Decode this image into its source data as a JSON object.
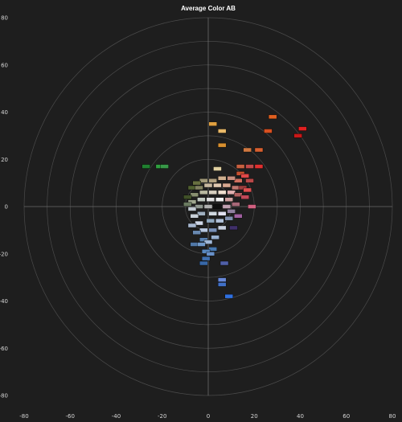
{
  "chart_data": {
    "type": "scatter",
    "title": "Average Color AB",
    "xlabel": "",
    "ylabel": "",
    "xlim": [
      -80,
      80
    ],
    "ylim": [
      -80,
      80
    ],
    "x_ticks": [
      -80,
      -60,
      -40,
      -20,
      0,
      20,
      40,
      60,
      80
    ],
    "y_ticks": [
      80,
      60,
      40,
      20,
      0,
      -20,
      -40,
      -60,
      -80
    ],
    "x_tick_labels": [
      "-80",
      "-60",
      "-40",
      "-20",
      "0",
      "20",
      "40",
      "60",
      "80"
    ],
    "y_tick_labels": [
      "80",
      "60",
      "40",
      "20",
      "0",
      "-20",
      "-40",
      "-60",
      "-80"
    ],
    "rings": [
      10,
      20,
      30,
      40,
      50,
      60,
      70,
      80
    ],
    "grid": "polar rings with crosshair axes",
    "colors": {
      "background": "#1e1e1e",
      "grid": "#4a4a4a",
      "axes": "#6a6a6a",
      "text": "#d6d6d6"
    },
    "points": [
      {
        "x": 2,
        "y": 35,
        "color": "#e0a040"
      },
      {
        "x": 6,
        "y": 32,
        "color": "#e8b868"
      },
      {
        "x": 6,
        "y": 26,
        "color": "#d89030"
      },
      {
        "x": 28,
        "y": 38,
        "color": "#e06020"
      },
      {
        "x": 26,
        "y": 32,
        "color": "#d85020"
      },
      {
        "x": 41,
        "y": 33,
        "color": "#e02020"
      },
      {
        "x": 39,
        "y": 30,
        "color": "#c81818"
      },
      {
        "x": 17,
        "y": 24,
        "color": "#d07840"
      },
      {
        "x": 22,
        "y": 24,
        "color": "#d86030"
      },
      {
        "x": 14,
        "y": 17,
        "color": "#c86040"
      },
      {
        "x": 22,
        "y": 17,
        "color": "#e03030"
      },
      {
        "x": 18,
        "y": 17,
        "color": "#c04848"
      },
      {
        "x": -27,
        "y": 17,
        "color": "#208030"
      },
      {
        "x": -21,
        "y": 17,
        "color": "#30a040"
      },
      {
        "x": -19,
        "y": 17,
        "color": "#389848"
      },
      {
        "x": 4,
        "y": 16,
        "color": "#e0d0a0"
      },
      {
        "x": 14,
        "y": 14,
        "color": "#c85030"
      },
      {
        "x": 16,
        "y": 13,
        "color": "#e04848"
      },
      {
        "x": 18,
        "y": 11,
        "color": "#b84848"
      },
      {
        "x": 13,
        "y": 11,
        "color": "#d07060"
      },
      {
        "x": 10,
        "y": 12,
        "color": "#c89080"
      },
      {
        "x": 6,
        "y": 12,
        "color": "#d0b090"
      },
      {
        "x": 2,
        "y": 11,
        "color": "#b0a080"
      },
      {
        "x": -2,
        "y": 11,
        "color": "#a09878"
      },
      {
        "x": -5,
        "y": 10,
        "color": "#687040"
      },
      {
        "x": -7,
        "y": 8,
        "color": "#506030"
      },
      {
        "x": -4,
        "y": 8,
        "color": "#808060"
      },
      {
        "x": 0,
        "y": 9,
        "color": "#c8b8a0"
      },
      {
        "x": 4,
        "y": 9,
        "color": "#e0c8b0"
      },
      {
        "x": 8,
        "y": 9,
        "color": "#d8a890"
      },
      {
        "x": 12,
        "y": 8,
        "color": "#c07870"
      },
      {
        "x": 15,
        "y": 8,
        "color": "#a04040"
      },
      {
        "x": 17,
        "y": 7,
        "color": "#e05050"
      },
      {
        "x": 10,
        "y": 6,
        "color": "#e0b0b0"
      },
      {
        "x": 6,
        "y": 6,
        "color": "#f0e0d0"
      },
      {
        "x": 2,
        "y": 6,
        "color": "#d8d0c0"
      },
      {
        "x": -2,
        "y": 6,
        "color": "#b8b8a0"
      },
      {
        "x": -6,
        "y": 5,
        "color": "#889070"
      },
      {
        "x": -9,
        "y": 4,
        "color": "#405028"
      },
      {
        "x": 13,
        "y": 5,
        "color": "#b06060"
      },
      {
        "x": 16,
        "y": 4,
        "color": "#c04858"
      },
      {
        "x": 9,
        "y": 3,
        "color": "#d0a0a0"
      },
      {
        "x": 5,
        "y": 3,
        "color": "#f0f0f0"
      },
      {
        "x": 1,
        "y": 3,
        "color": "#e0e0e0"
      },
      {
        "x": -3,
        "y": 3,
        "color": "#c0c8c0"
      },
      {
        "x": -7,
        "y": 2,
        "color": "#a0a890"
      },
      {
        "x": -9,
        "y": 1,
        "color": "#6a7a60"
      },
      {
        "x": 12,
        "y": 1,
        "color": "#a86878"
      },
      {
        "x": 19,
        "y": 0,
        "color": "#d06080"
      },
      {
        "x": 8,
        "y": 0,
        "color": "#c0a0b0"
      },
      {
        "x": 4,
        "y": 0,
        "color": "#101010"
      },
      {
        "x": 0,
        "y": 0,
        "color": "#b0b0b0"
      },
      {
        "x": -4,
        "y": 0,
        "color": "#909890"
      },
      {
        "x": -7,
        "y": -1,
        "color": "#c0c8d0"
      },
      {
        "x": 10,
        "y": -2,
        "color": "#9080a0"
      },
      {
        "x": 6,
        "y": -3,
        "color": "#e0e0f0"
      },
      {
        "x": 2,
        "y": -3,
        "color": "#d0d8e0"
      },
      {
        "x": -3,
        "y": -3,
        "color": "#a0b0c0"
      },
      {
        "x": -6,
        "y": -4,
        "color": "#c8d0d8"
      },
      {
        "x": 13,
        "y": -4,
        "color": "#a060a0"
      },
      {
        "x": 9,
        "y": -5,
        "color": "#8090b0"
      },
      {
        "x": 5,
        "y": -6,
        "color": "#b0c0d8"
      },
      {
        "x": 1,
        "y": -6,
        "color": "#90a8c0"
      },
      {
        "x": -4,
        "y": -7,
        "color": "#d0d8e8"
      },
      {
        "x": -7,
        "y": -8,
        "color": "#a8b8d0"
      },
      {
        "x": 11,
        "y": -9,
        "color": "#40306a"
      },
      {
        "x": 6,
        "y": -9,
        "color": "#c8d0e0"
      },
      {
        "x": 2,
        "y": -10,
        "color": "#7890b8"
      },
      {
        "x": -2,
        "y": -10,
        "color": "#b8c8e0"
      },
      {
        "x": -5,
        "y": -11,
        "color": "#6888b0"
      },
      {
        "x": 3,
        "y": -13,
        "color": "#98b0d0"
      },
      {
        "x": -2,
        "y": -14,
        "color": "#5880b0"
      },
      {
        "x": 0,
        "y": -15,
        "color": "#a0b8d8"
      },
      {
        "x": -6,
        "y": -16,
        "color": "#5078a8"
      },
      {
        "x": -3,
        "y": -16,
        "color": "#7098c8"
      },
      {
        "x": 2,
        "y": -18,
        "color": "#4878b0"
      },
      {
        "x": -1,
        "y": -19,
        "color": "#5888c0"
      },
      {
        "x": 1,
        "y": -20,
        "color": "#6890c8"
      },
      {
        "x": -1,
        "y": -22,
        "color": "#4070b0"
      },
      {
        "x": -2,
        "y": -24,
        "color": "#3868a8"
      },
      {
        "x": 7,
        "y": -24,
        "color": "#5060a8"
      },
      {
        "x": 6,
        "y": -31,
        "color": "#6888d8"
      },
      {
        "x": 6,
        "y": -33,
        "color": "#4070c8"
      },
      {
        "x": 9,
        "y": -38,
        "color": "#3070e0"
      }
    ]
  }
}
